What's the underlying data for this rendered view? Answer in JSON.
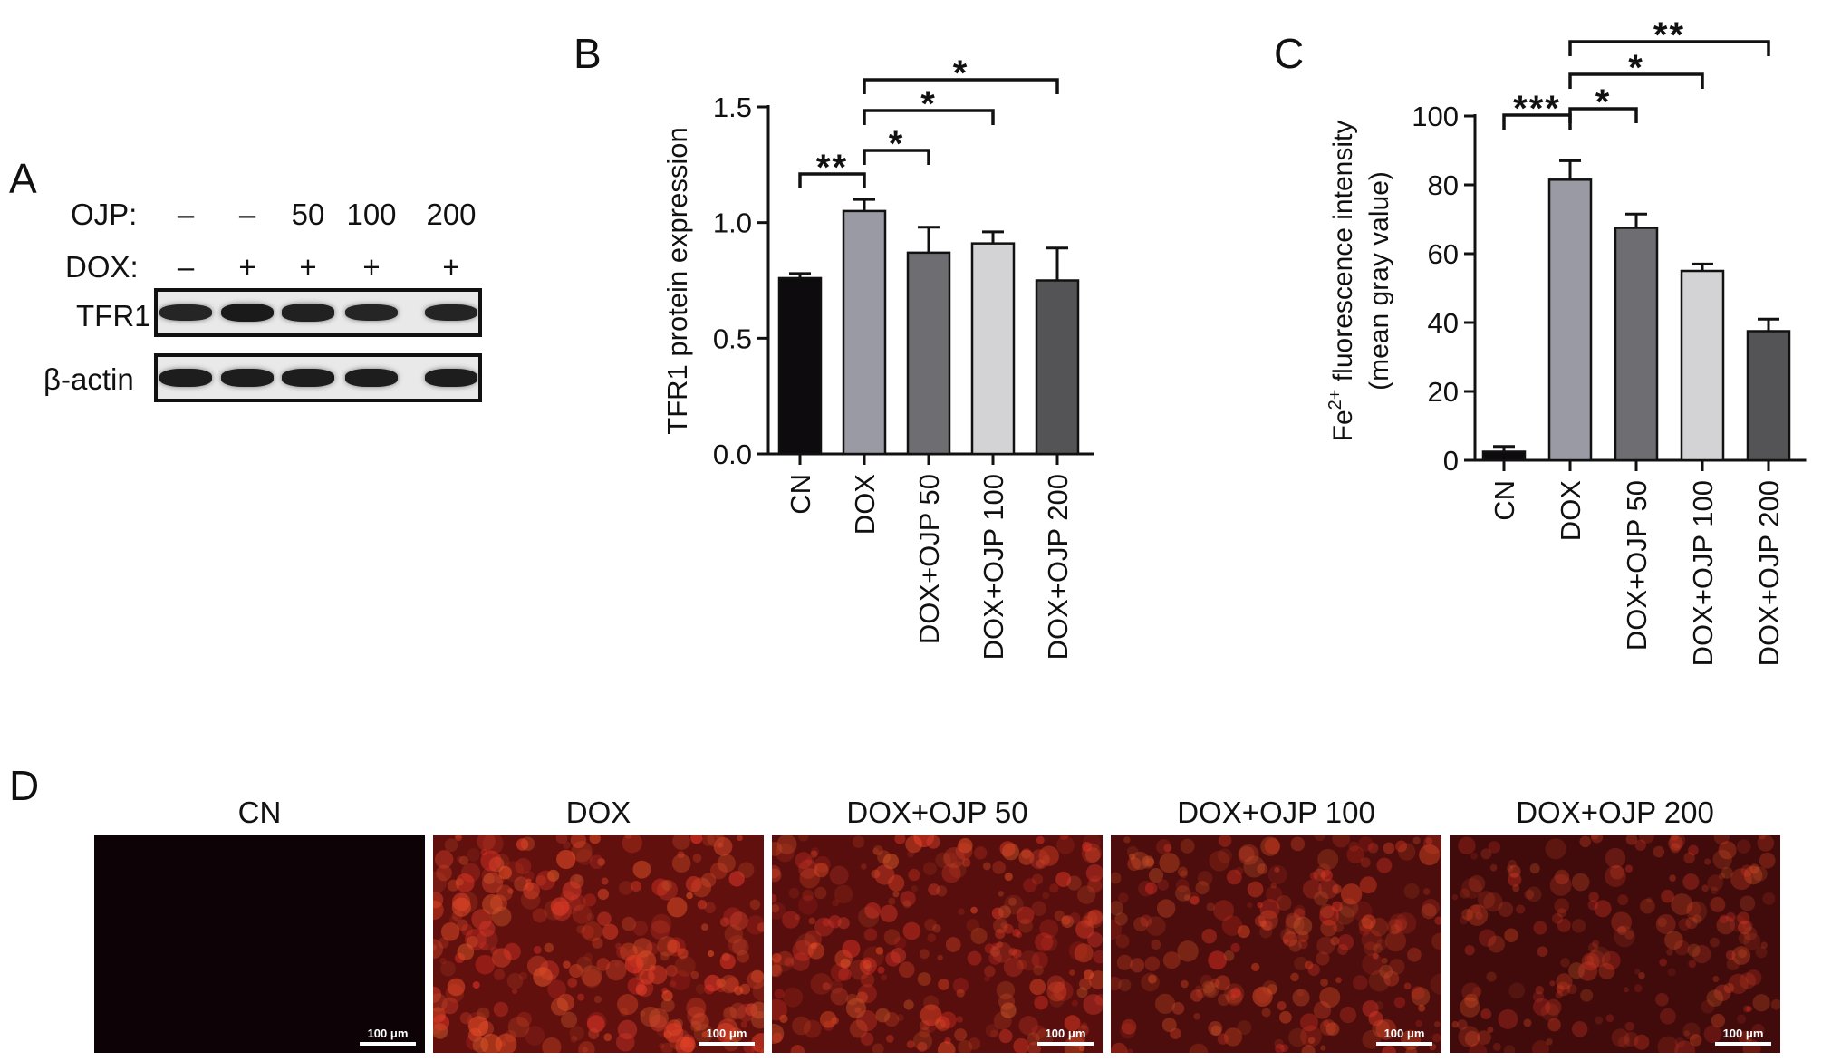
{
  "panels": {
    "a": "A",
    "b": "B",
    "c": "C",
    "d": "D"
  },
  "western_blot": {
    "row_labels": {
      "ojp": "OJP:",
      "dox": "DOX:"
    },
    "ojp_values": [
      "–",
      "–",
      "50",
      "100",
      "200"
    ],
    "dox_values": [
      "–",
      "+",
      "+",
      "+",
      "+"
    ],
    "bands": [
      {
        "label": "TFR1",
        "intensity": [
          0.72,
          0.9,
          0.78,
          0.72,
          0.74
        ]
      },
      {
        "label": "β-actin",
        "intensity": [
          0.85,
          0.85,
          0.85,
          0.85,
          0.85
        ]
      }
    ]
  },
  "chart_data": [
    {
      "type": "bar",
      "title": "",
      "ylabel": "TFR1 protein expression",
      "xlabel": "",
      "categories": [
        "CN",
        "DOX",
        "DOX+OJP 50",
        "DOX+OJP 100",
        "DOX+OJP 200"
      ],
      "values": [
        0.76,
        1.05,
        0.87,
        0.91,
        0.75
      ],
      "errors": [
        0.02,
        0.05,
        0.11,
        0.05,
        0.14
      ],
      "colors": [
        "#0d0b0e",
        "#9a9aa4",
        "#6e6e72",
        "#d3d3d5",
        "#545456"
      ],
      "ylim": [
        0,
        1.5
      ],
      "yticks": [
        "0.0",
        "0.5",
        "1.0",
        "1.5"
      ],
      "significance": [
        {
          "from": 0,
          "to": 1,
          "label": "**"
        },
        {
          "from": 1,
          "to": 2,
          "label": "*"
        },
        {
          "from": 1,
          "to": 3,
          "label": "*"
        },
        {
          "from": 1,
          "to": 4,
          "label": "*"
        }
      ]
    },
    {
      "type": "bar",
      "title": "",
      "ylabel": [
        "Fe",
        "2+",
        " fluorescence intensity"
      ],
      "ylabel2": "(mean gray value)",
      "xlabel": "",
      "categories": [
        "CN",
        "DOX",
        "DOX+OJP 50",
        "DOX+OJP 100",
        "DOX+OJP 200"
      ],
      "values": [
        2.5,
        81.5,
        67.5,
        55,
        37.5
      ],
      "errors": [
        1.5,
        5.5,
        4.0,
        2.0,
        3.5
      ],
      "colors": [
        "#0d0b0e",
        "#9a9aa4",
        "#6e6e72",
        "#d3d3d5",
        "#545456"
      ],
      "ylim": [
        0,
        100
      ],
      "yticks": [
        "0",
        "20",
        "40",
        "60",
        "80",
        "100"
      ],
      "significance": [
        {
          "from": 0,
          "to": 1,
          "label": "***"
        },
        {
          "from": 1,
          "to": 2,
          "label": "*"
        },
        {
          "from": 1,
          "to": 3,
          "label": "*"
        },
        {
          "from": 1,
          "to": 4,
          "label": "**"
        }
      ]
    }
  ],
  "micrographs": [
    {
      "title": "CN",
      "scale": "100 μm",
      "brightness": 0.0
    },
    {
      "title": "DOX",
      "scale": "100 μm",
      "brightness": 0.95
    },
    {
      "title": "DOX+OJP 50",
      "scale": "100 μm",
      "brightness": 0.8
    },
    {
      "title": "DOX+OJP 100",
      "scale": "100 μm",
      "brightness": 0.62
    },
    {
      "title": "DOX+OJP 200",
      "scale": "100 μm",
      "brightness": 0.42
    }
  ]
}
